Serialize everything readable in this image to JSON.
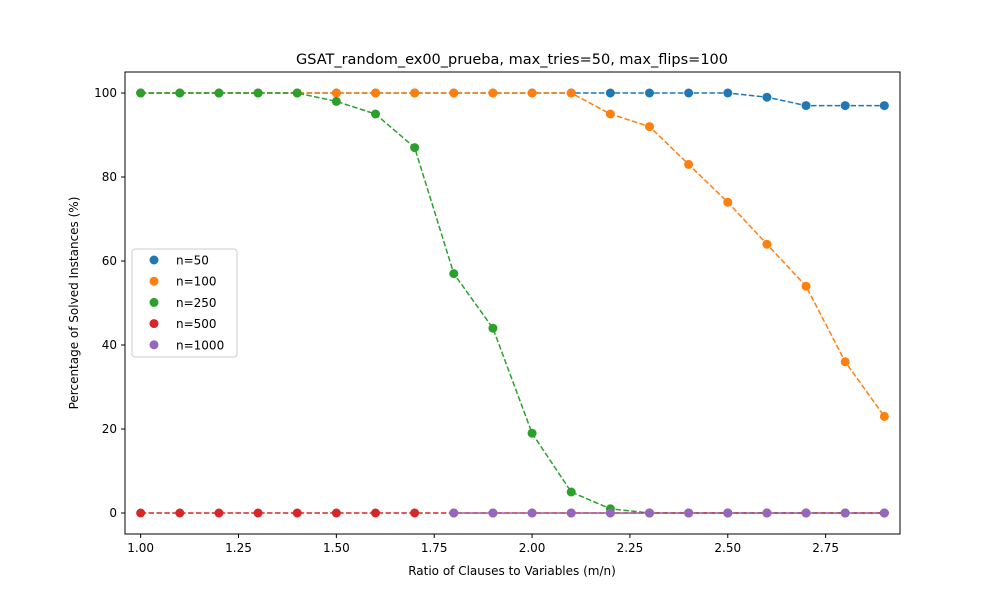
{
  "chart_data": {
    "type": "line",
    "title": "GSAT_random_ex00_prueba, max_tries=50, max_flips=100",
    "xlabel": "Ratio of Clauses to Variables (m/n)",
    "ylabel": "Percentage of Solved Instances (%)",
    "xlim": [
      0.96,
      2.94
    ],
    "ylim": [
      -5,
      105
    ],
    "xticks": [
      1.0,
      1.25,
      1.5,
      1.75,
      2.0,
      2.25,
      2.5,
      2.75
    ],
    "xtick_labels": [
      "1.00",
      "1.25",
      "1.50",
      "1.75",
      "2.00",
      "2.25",
      "2.50",
      "2.75"
    ],
    "yticks": [
      0,
      20,
      40,
      60,
      80,
      100
    ],
    "ytick_labels": [
      "0",
      "20",
      "40",
      "60",
      "80",
      "100"
    ],
    "grid": false,
    "legend_position": "center-left",
    "line_style": "dashed",
    "series": [
      {
        "name": "n=50",
        "color": "#1f77b4",
        "x": [
          1.0,
          1.1,
          1.2,
          1.3,
          1.4,
          1.5,
          1.6,
          1.7,
          1.8,
          1.9,
          2.0,
          2.1,
          2.2,
          2.3,
          2.4,
          2.5,
          2.6,
          2.7,
          2.8,
          2.9
        ],
        "values": [
          100,
          100,
          100,
          100,
          100,
          100,
          100,
          100,
          100,
          100,
          100,
          100,
          100,
          100,
          100,
          100,
          99,
          97,
          97,
          97
        ]
      },
      {
        "name": "n=100",
        "color": "#ff7f0e",
        "x": [
          1.0,
          1.1,
          1.2,
          1.3,
          1.4,
          1.5,
          1.6,
          1.7,
          1.8,
          1.9,
          2.0,
          2.1,
          2.2,
          2.3,
          2.4,
          2.5,
          2.6,
          2.7,
          2.8,
          2.9
        ],
        "values": [
          100,
          100,
          100,
          100,
          100,
          100,
          100,
          100,
          100,
          100,
          100,
          100,
          95,
          92,
          83,
          74,
          64,
          54,
          36,
          23
        ]
      },
      {
        "name": "n=250",
        "color": "#2ca02c",
        "x": [
          1.0,
          1.1,
          1.2,
          1.3,
          1.4,
          1.5,
          1.6,
          1.7,
          1.8,
          1.9,
          2.0,
          2.1,
          2.2,
          2.3,
          2.4,
          2.5,
          2.6,
          2.7,
          2.8,
          2.9
        ],
        "values": [
          100,
          100,
          100,
          100,
          100,
          98,
          95,
          87,
          57,
          44,
          19,
          5,
          1,
          0,
          0,
          0,
          0,
          0,
          0,
          0
        ]
      },
      {
        "name": "n=500",
        "color": "#d62728",
        "x": [
          1.0,
          1.1,
          1.2,
          1.3,
          1.4,
          1.5,
          1.6,
          1.7,
          1.8,
          1.9,
          2.0,
          2.1,
          2.2,
          2.3,
          2.4,
          2.5,
          2.6,
          2.7,
          2.8,
          2.9
        ],
        "values": [
          0,
          0,
          0,
          0,
          0,
          0,
          0,
          0,
          0,
          0,
          0,
          0,
          0,
          0,
          0,
          0,
          0,
          0,
          0,
          0
        ]
      },
      {
        "name": "n=1000",
        "color": "#9467bd",
        "x": [
          1.8,
          1.9,
          2.0,
          2.1,
          2.2,
          2.3,
          2.4,
          2.5,
          2.6,
          2.7,
          2.8,
          2.9
        ],
        "values": [
          0,
          0,
          0,
          0,
          0,
          0,
          0,
          0,
          0,
          0,
          0,
          0
        ]
      }
    ]
  }
}
